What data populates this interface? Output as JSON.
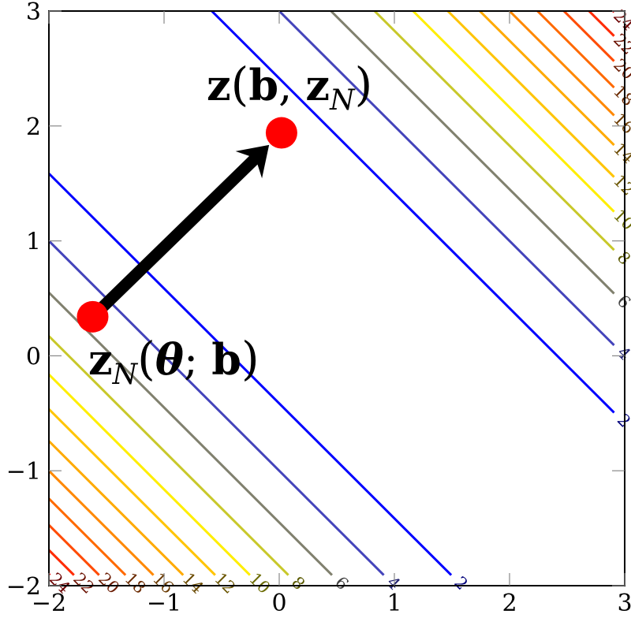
{
  "chart_data": {
    "type": "contour",
    "function_description_levels": "level sets of (x+y-1)^2",
    "levels": [
      2,
      4,
      6,
      8,
      10,
      12,
      14,
      16,
      18,
      20,
      22,
      24
    ],
    "level_colors": [
      "#0000ff",
      "#4444bb",
      "#80806e",
      "#c8c82a",
      "#ffee00",
      "#ffc400",
      "#ffaa00",
      "#ff8800",
      "#ff6a00",
      "#ff4a00",
      "#ff2a00",
      "#ff0000"
    ],
    "label_colors": [
      "#00007a",
      "#202070",
      "#404040",
      "#5a5a00",
      "#6a6a00",
      "#6a5500",
      "#6a4a00",
      "#6a3a00",
      "#6a2a00",
      "#6a1a00",
      "#6a1000",
      "#6a0000"
    ],
    "label_texts": [
      "2",
      "4",
      "6",
      "8",
      "10",
      "12",
      "14",
      "16",
      "18",
      "20",
      "22",
      "24"
    ],
    "xlim": [
      -2,
      3
    ],
    "ylim": [
      -2,
      3
    ],
    "xticks": [
      "−2",
      "−1",
      "0",
      "1",
      "2",
      "3"
    ],
    "yticks": [
      "−2",
      "−1",
      "0",
      "1",
      "2",
      "3"
    ],
    "xtick_values": [
      -2,
      -1,
      0,
      1,
      2,
      3
    ],
    "ytick_values": [
      -2,
      -1,
      0,
      1,
      2,
      3
    ],
    "points": [
      {
        "name": "start",
        "x": -1.62,
        "y": 0.34,
        "color": "#ff0000"
      },
      {
        "name": "end",
        "x": 0.02,
        "y": 1.94,
        "color": "#ff0000"
      }
    ],
    "arrow": {
      "from": [
        -1.62,
        0.34
      ],
      "to": [
        0.02,
        1.94
      ],
      "color": "#000000"
    },
    "annotations": [
      {
        "main": "z",
        "open": "(",
        "arg1": "b",
        "sep": ", ",
        "arg2": "z",
        "sub": "N",
        "close": ")"
      },
      {
        "main": "z",
        "sub": "N",
        "open": "(",
        "arg1": "θ",
        "sep": "; ",
        "arg2": "b",
        "close": ")"
      }
    ],
    "grid": false
  }
}
